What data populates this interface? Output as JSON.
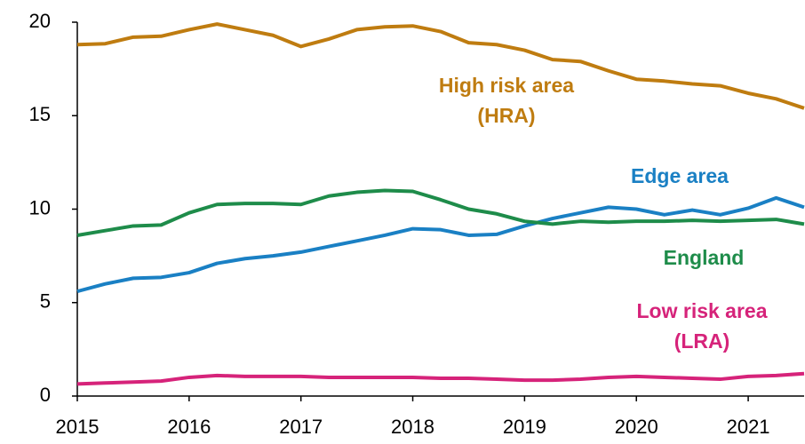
{
  "chart_data": {
    "type": "line",
    "x": [
      2015,
      2015.25,
      2015.5,
      2015.75,
      2016,
      2016.25,
      2016.5,
      2016.75,
      2017,
      2017.25,
      2017.5,
      2017.75,
      2018,
      2018.25,
      2018.5,
      2018.75,
      2019,
      2019.25,
      2019.5,
      2019.75,
      2020,
      2020.25,
      2020.5,
      2020.75,
      2021,
      2021.25,
      2021.5
    ],
    "series": [
      {
        "name": "High risk area",
        "abbr": "(HRA)",
        "color": "#bf7c10",
        "values": [
          18.8,
          18.85,
          19.2,
          19.25,
          19.6,
          19.9,
          19.6,
          19.3,
          18.7,
          19.1,
          19.6,
          19.75,
          19.8,
          19.5,
          18.9,
          18.8,
          18.5,
          18.0,
          17.9,
          17.4,
          16.95,
          16.85,
          16.7,
          16.6,
          16.2,
          15.9,
          15.4
        ]
      },
      {
        "name": "Edge area",
        "color": "#1a80c4",
        "values": [
          5.6,
          6.0,
          6.3,
          6.35,
          6.6,
          7.1,
          7.35,
          7.5,
          7.7,
          8.0,
          8.3,
          8.6,
          8.95,
          8.9,
          8.6,
          8.65,
          9.1,
          9.5,
          9.8,
          10.1,
          10.0,
          9.7,
          9.95,
          9.7,
          10.05,
          10.6,
          10.1
        ]
      },
      {
        "name": "England",
        "color": "#1e8c4a",
        "values": [
          8.6,
          8.85,
          9.1,
          9.15,
          9.8,
          10.25,
          10.3,
          10.3,
          10.25,
          10.7,
          10.9,
          11.0,
          10.95,
          10.5,
          10.0,
          9.75,
          9.35,
          9.2,
          9.35,
          9.3,
          9.35,
          9.35,
          9.4,
          9.35,
          9.4,
          9.45,
          9.2
        ]
      },
      {
        "name": "Low risk area",
        "abbr": "(LRA)",
        "color": "#d6237a",
        "values": [
          0.65,
          0.7,
          0.75,
          0.8,
          1.0,
          1.1,
          1.05,
          1.05,
          1.05,
          1.0,
          1.0,
          1.0,
          1.0,
          0.95,
          0.95,
          0.9,
          0.85,
          0.85,
          0.9,
          1.0,
          1.05,
          1.0,
          0.95,
          0.9,
          1.05,
          1.1,
          1.2
        ]
      }
    ],
    "xlim": [
      2015,
      2021.5
    ],
    "xticks": [
      2015,
      2016,
      2017,
      2018,
      2019,
      2020,
      2021
    ],
    "ylim": [
      0,
      20
    ],
    "yticks": [
      0,
      5,
      10,
      15,
      20
    ]
  }
}
